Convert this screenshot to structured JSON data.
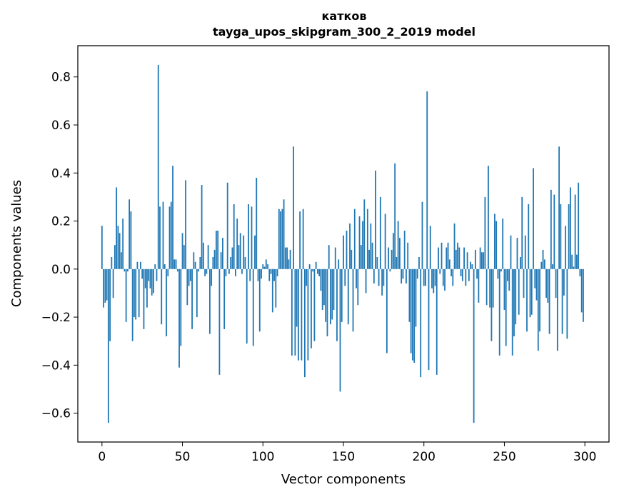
{
  "chart_data": {
    "type": "bar",
    "title": "катков",
    "subtitle": "tayga_upos_skipgram_300_2_2019 model",
    "xlabel": "Vector components",
    "ylabel": "Components values",
    "xlim": [
      -15,
      315
    ],
    "ylim": [
      -0.72,
      0.93
    ],
    "xticks": [
      0,
      50,
      100,
      150,
      200,
      250,
      300
    ],
    "xtick_labels": [
      "0",
      "50",
      "100",
      "150",
      "200",
      "250",
      "300"
    ],
    "yticks": [
      -0.6,
      -0.4,
      -0.2,
      0.0,
      0.2,
      0.4,
      0.6,
      0.8
    ],
    "ytick_labels": [
      "−0.6",
      "−0.4",
      "−0.2",
      "0.0",
      "0.2",
      "0.4",
      "0.6",
      "0.8"
    ],
    "bar_color": "#1f77b4",
    "grid": false,
    "x": "0..299",
    "values": [
      0.18,
      -0.16,
      -0.14,
      -0.13,
      -0.64,
      -0.3,
      0.05,
      -0.12,
      0.1,
      0.34,
      0.18,
      0.15,
      0.07,
      0.21,
      -0.01,
      -0.22,
      -0.01,
      0.29,
      0.24,
      -0.3,
      -0.2,
      -0.21,
      0.03,
      -0.2,
      0.03,
      -0.04,
      -0.25,
      -0.08,
      -0.16,
      -0.05,
      -0.08,
      -0.11,
      -0.1,
      0.02,
      -0.05,
      0.85,
      0.26,
      -0.23,
      0.28,
      0.02,
      -0.28,
      -0.03,
      0.26,
      0.28,
      0.43,
      0.04,
      0.04,
      -0.01,
      -0.41,
      -0.32,
      0.15,
      0.1,
      0.37,
      -0.15,
      -0.07,
      -0.05,
      -0.25,
      0.07,
      0.03,
      -0.2,
      -0.01,
      0.05,
      0.35,
      0.11,
      -0.03,
      -0.02,
      0.1,
      -0.27,
      -0.07,
      0.05,
      0.08,
      0.16,
      0.16,
      -0.44,
      0.07,
      0.13,
      -0.25,
      -0.03,
      0.36,
      -0.02,
      0.05,
      0.09,
      0.27,
      -0.03,
      0.21,
      0.1,
      0.15,
      -0.02,
      0.14,
      0.05,
      -0.31,
      0.27,
      -0.05,
      0.26,
      -0.32,
      0.14,
      0.38,
      -0.05,
      -0.26,
      -0.04,
      0.02,
      0.01,
      0.04,
      0.02,
      -0.05,
      -0.02,
      -0.18,
      -0.05,
      -0.16,
      -0.03,
      0.25,
      0.24,
      0.25,
      0.29,
      0.09,
      0.09,
      0.04,
      0.08,
      -0.36,
      0.51,
      -0.36,
      -0.24,
      -0.38,
      0.24,
      -0.38,
      0.25,
      -0.45,
      -0.07,
      -0.38,
      0.02,
      -0.33,
      -0.01,
      -0.3,
      0.03,
      -0.02,
      -0.03,
      -0.09,
      -0.17,
      -0.15,
      -0.22,
      -0.28,
      0.1,
      -0.23,
      -0.21,
      -0.17,
      0.09,
      -0.3,
      0.04,
      -0.51,
      -0.22,
      0.14,
      -0.07,
      0.16,
      -0.23,
      0.19,
      0.08,
      -0.26,
      0.25,
      -0.08,
      -0.15,
      0.22,
      0.1,
      0.2,
      0.29,
      -0.1,
      0.25,
      0.08,
      0.19,
      0.11,
      -0.06,
      0.41,
      0.05,
      -0.07,
      0.3,
      -0.11,
      -0.07,
      0.23,
      -0.35,
      0.09,
      -0.01,
      0.08,
      0.15,
      0.44,
      0.05,
      0.2,
      0.13,
      -0.06,
      -0.04,
      0.16,
      -0.06,
      0.11,
      -0.22,
      -0.35,
      -0.38,
      -0.39,
      -0.24,
      -0.04,
      0.05,
      -0.45,
      0.28,
      -0.07,
      -0.07,
      0.74,
      -0.42,
      0.18,
      -0.08,
      -0.1,
      -0.07,
      -0.44,
      0.09,
      -0.02,
      0.11,
      -0.07,
      -0.09,
      0.09,
      0.11,
      0.04,
      -0.03,
      -0.07,
      0.19,
      0.08,
      0.11,
      0.09,
      -0.03,
      -0.05,
      0.09,
      -0.07,
      0.07,
      -0.05,
      0.03,
      0.02,
      -0.64,
      0.08,
      -0.04,
      -0.14,
      0.09,
      0.07,
      0.07,
      0.3,
      -0.15,
      0.43,
      -0.16,
      -0.3,
      -0.16,
      0.23,
      0.2,
      -0.04,
      -0.36,
      -0.01,
      0.21,
      -0.17,
      -0.32,
      -0.05,
      -0.09,
      0.14,
      -0.36,
      -0.28,
      -0.23,
      0.13,
      -0.19,
      0.05,
      0.3,
      -0.12,
      0.14,
      -0.26,
      0.27,
      -0.2,
      -0.19,
      0.42,
      -0.08,
      -0.13,
      -0.34,
      -0.26,
      0.03,
      0.08,
      0.04,
      -0.12,
      -0.14,
      -0.27,
      0.33,
      0.02,
      0.31,
      -0.12,
      -0.34,
      0.51,
      0.27,
      -0.27,
      -0.11,
      0.18,
      -0.29,
      0.27,
      0.34,
      0.06,
      0.01,
      0.31,
      0.06,
      0.36,
      -0.03,
      -0.18,
      -0.22
    ]
  }
}
